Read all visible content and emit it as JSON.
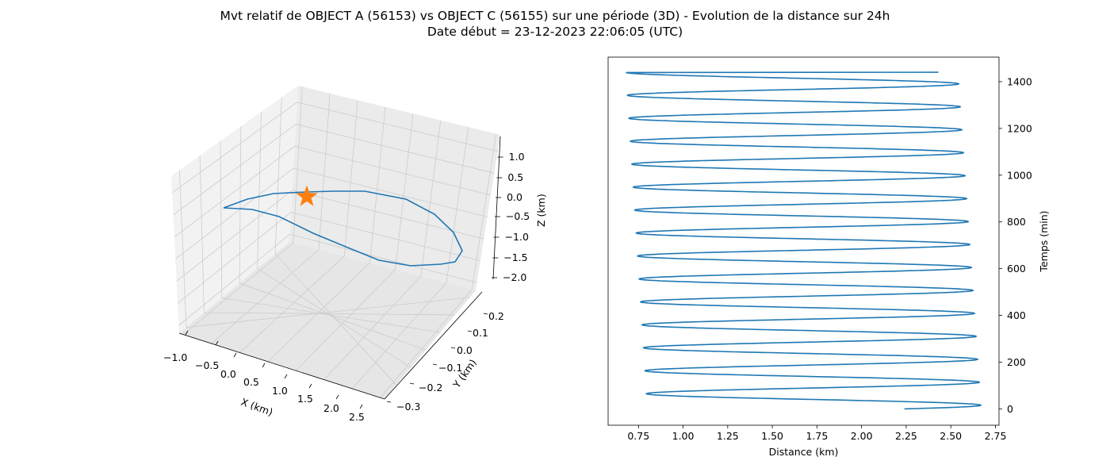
{
  "title_line1": "Mvt relatif de OBJECT A (56153) vs OBJECT C (56155) sur une période (3D) - Evolution de la distance sur 24h",
  "title_line2": "Date début = 23-12-2023 22:06:05 (UTC)",
  "colors": {
    "series": "#1f77b4",
    "marker": "#ff7f0e",
    "pane": "#f2f2f2",
    "grid": "#cccccc"
  },
  "chart_data": [
    {
      "type": "line3d",
      "xlabel": "X (km)",
      "ylabel": "Y (km)",
      "zlabel": "Z (km)",
      "xticks": [
        "−1.0",
        "−0.5",
        "0.0",
        "0.5",
        "1.0",
        "1.5",
        "2.0",
        "2.5"
      ],
      "yticks": [
        "−0.3",
        "−0.2",
        "−0.1",
        "0.0",
        "0.1",
        "0.2"
      ],
      "zticks": [
        "−2.0",
        "−1.5",
        "−1.0",
        "−0.5",
        "0.0",
        "0.5",
        "1.0"
      ],
      "xlim": [
        -1.0,
        2.5
      ],
      "ylim": [
        -0.3,
        0.25
      ],
      "zlim": [
        -2.1,
        1.2
      ],
      "grid": true,
      "marker": {
        "shape": "star",
        "x": 0,
        "y": 0,
        "z": 0
      }
    },
    {
      "type": "line",
      "xlabel": "Distance (km)",
      "ylabel": "Temps (min)",
      "xticks": [
        "0.75",
        "1.00",
        "1.25",
        "1.50",
        "1.75",
        "2.00",
        "2.25",
        "2.50",
        "2.75"
      ],
      "yticks": [
        "0",
        "200",
        "400",
        "600",
        "800",
        "1000",
        "1200",
        "1400"
      ],
      "xlim": [
        0.58,
        2.77
      ],
      "ylim": [
        -70,
        1505
      ],
      "y_axis_side": "right",
      "series": [
        {
          "t_start": 0,
          "t_end": 1440,
          "period": 98.4,
          "d_start": 2.24,
          "d_end": 2.43,
          "max_first": 2.67,
          "max_last": 2.54,
          "min_first": 0.8,
          "min_last": 0.68
        }
      ]
    }
  ]
}
